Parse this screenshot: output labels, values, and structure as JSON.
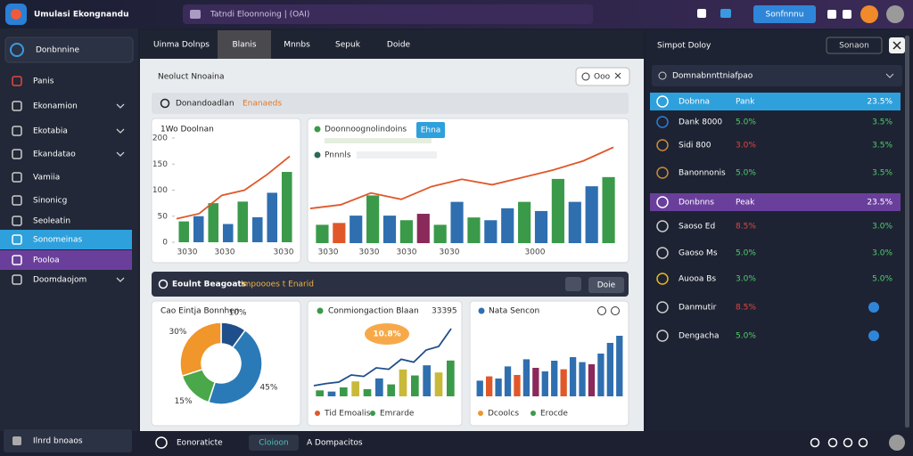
{
  "app": {
    "title": "Umulasi Ekongnandu",
    "search": "Tatndi Eloonnoing | (OAI)",
    "button": "Sonfnnnu"
  },
  "sidebar": {
    "header": "Donbnnine",
    "items": [
      "Panis",
      "Ekonamion",
      "Ekotabia",
      "Ekandatao",
      "Vamiia",
      "Sinonicg",
      "Seoleatin",
      "Sonomeinas",
      "Pooloa",
      "Doomdaojom"
    ],
    "footer": "Ilnrd bnoaos"
  },
  "tabs": {
    "title": "Uinma Dolnps",
    "items": [
      "Blanis",
      "Mnnbs",
      "Sepuk",
      "Doide"
    ]
  },
  "main": {
    "title": "Neoluct Nnoaina",
    "filter": "Ooo",
    "section": "Donandoadlan",
    "section_note": "Enanaeds"
  },
  "toolbar": {
    "label": "Eoulnt Beagoats",
    "note": "Impoooes t Enarid",
    "button": "Doie"
  },
  "charts": [
    {
      "type": "bar",
      "title": "1Wo Doolnan",
      "ylim": [
        0,
        200
      ],
      "yticks": [
        0,
        50,
        100,
        150,
        200
      ],
      "categories": [
        "3030",
        "3030",
        "3030"
      ],
      "values": [
        40,
        50,
        75,
        35,
        78,
        48,
        95,
        135
      ],
      "colors": [
        "#3a9a4a",
        "#2f6fb0",
        "#3a9a4a",
        "#2f6fb0",
        "#3a9a4a",
        "#2f6fb0",
        "#2f6fb0",
        "#3a9a4a"
      ],
      "line": [
        45,
        55,
        90,
        100,
        130,
        165
      ],
      "line_color": "#e0582a"
    },
    {
      "type": "bar",
      "legend": [
        "Doonnoognolindoins",
        "Pnnnls"
      ],
      "badge": "Ehna",
      "ylim": [
        0,
        100
      ],
      "categories": [
        "3030",
        "3030",
        "3030",
        "3030",
        "3000"
      ],
      "values": [
        20,
        22,
        30,
        52,
        30,
        25,
        32,
        20,
        45,
        28,
        25,
        38,
        45,
        35,
        70,
        45,
        62,
        72
      ],
      "colors": [
        "#3a9a4a",
        "#e0582a",
        "#2f6fb0",
        "#3a9a4a",
        "#2f6fb0",
        "#3a9a4a",
        "#8a2a5a",
        "#3a9a4a",
        "#2f6fb0",
        "#3a9a4a",
        "#2f6fb0",
        "#2f6fb0",
        "#3a9a4a",
        "#2f6fb0",
        "#3a9a4a",
        "#2f6fb0",
        "#2f6fb0",
        "#3a9a4a"
      ],
      "line": [
        38,
        42,
        55,
        48,
        62,
        70,
        64,
        72,
        80,
        90,
        105
      ],
      "line_ylim": [
        0,
        120
      ],
      "line_color": "#e0582a"
    },
    {
      "type": "pie",
      "title": "Cao Eintja Bonnhen",
      "values": [
        10,
        45,
        15,
        30
      ],
      "value_labels": [
        "10%",
        "45%",
        "15%",
        "30%"
      ],
      "colors": [
        "#1f4f8a",
        "#2a7ab8",
        "#4aa84a",
        "#f0962a"
      ]
    },
    {
      "type": "bar",
      "title": "Conmiongaction Blaan",
      "number": "33395",
      "badge": "10.8%",
      "legend": [
        "Tid Emoalis",
        "Emrarde"
      ],
      "ylim": [
        0,
        100
      ],
      "values": [
        10,
        8,
        15,
        25,
        12,
        30,
        20,
        45,
        35,
        52,
        40,
        60
      ],
      "colors": [
        "#3a9a4a",
        "#2f6fb0",
        "#3a9a4a",
        "#c9b93a",
        "#3a9a4a",
        "#2f6fb0",
        "#3a9a4a",
        "#c9b93a",
        "#3a9a4a",
        "#2f6fb0",
        "#c9b93a",
        "#3a9a4a"
      ],
      "line": [
        15,
        18,
        20,
        30,
        28,
        40,
        38,
        52,
        48,
        65,
        70,
        95
      ],
      "line_color": "#1f4f8a"
    },
    {
      "type": "bar",
      "title": "Nata Sencon",
      "legend": [
        "Dcoolcs",
        "Erocde"
      ],
      "ylim": [
        0,
        100
      ],
      "values": [
        22,
        28,
        25,
        42,
        30,
        52,
        40,
        35,
        50,
        38,
        55,
        48,
        45,
        60,
        75,
        85
      ],
      "colors": [
        "#2f6fb0",
        "#e0582a",
        "#2f6fb0",
        "#2f6fb0",
        "#e0582a",
        "#2f6fb0",
        "#8a2a5a",
        "#2f6fb0",
        "#2f6fb0",
        "#e0582a",
        "#2f6fb0",
        "#2f6fb0",
        "#8a2a5a",
        "#2f6fb0",
        "#2f6fb0",
        "#2f6fb0"
      ]
    }
  ],
  "right_panel": {
    "title": "Simpot Doloy",
    "button": "Sonaon",
    "dropdown": "Domnabnnttniafpao",
    "rows": [
      {
        "name": "Dobnna",
        "label": "Pank",
        "value": "23.5%",
        "color": "#ffffff"
      },
      {
        "name": "Dank 8000",
        "label": "5.0%",
        "value": "3.5%",
        "color": "#4cd06a"
      },
      {
        "name": "Sidi 800",
        "label": "3.0%",
        "value": "3.5%",
        "color": "#e2473f"
      },
      {
        "name": "Banonnonis",
        "label": "5.0%",
        "value": "3.5%",
        "color": "#4cd06a"
      },
      {
        "name": "Donbnns",
        "label": "Peak",
        "value": "23.5%",
        "color": "#ffffff"
      },
      {
        "name": "Saoso Ed",
        "label": "8.5%",
        "value": "3.0%",
        "color": "#e2473f"
      },
      {
        "name": "Gaoso Ms",
        "label": "5.0%",
        "value": "3.0%",
        "color": "#4cd06a"
      },
      {
        "name": "Auooa Bs",
        "label": "3.0%",
        "value": "5.0%",
        "color": "#4cd06a"
      },
      {
        "name": "Danmutir",
        "label": "8.5%",
        "color": "#e2473f"
      },
      {
        "name": "Dengacha",
        "label": "5.0%",
        "color": "#4cd06a"
      }
    ]
  },
  "status": {
    "left": "Eonoraticte",
    "tab": "Cloioon",
    "right": "A Dompacitos"
  }
}
